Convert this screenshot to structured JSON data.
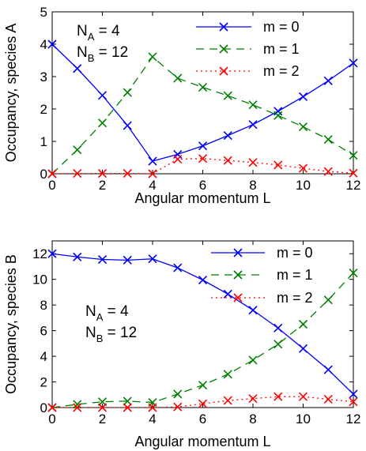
{
  "colors": {
    "m0": "#0000ff",
    "m1": "#008000",
    "m2": "#ff0000"
  },
  "chart_data": [
    {
      "type": "line",
      "xlabel": "Angular momentum L",
      "ylabel": "Occupancy, species A",
      "xlim": [
        0,
        12
      ],
      "ylim": [
        0,
        5
      ],
      "xticks": [
        "0",
        "2",
        "4",
        "6",
        "8",
        "10",
        "12"
      ],
      "yticks": [
        "0",
        "1",
        "2",
        "3",
        "4",
        "5"
      ],
      "legend_position": "top-right",
      "annotation": {
        "na_main": "N",
        "na_sub": "A",
        "na_val": " = 4",
        "nb_main": "N",
        "nb_sub": "B",
        "nb_val": " = 12"
      },
      "x": [
        0,
        1,
        2,
        3,
        4,
        5,
        6,
        7,
        8,
        9,
        10,
        11,
        12
      ],
      "series": [
        {
          "name": "m = 0",
          "style": "solid",
          "values": [
            4.0,
            3.25,
            2.42,
            1.49,
            0.39,
            0.6,
            0.86,
            1.18,
            1.52,
            1.93,
            2.38,
            2.87,
            3.42
          ]
        },
        {
          "name": "m = 1",
          "style": "dashed",
          "values": [
            0.0,
            0.74,
            1.57,
            2.51,
            3.61,
            2.95,
            2.67,
            2.41,
            2.13,
            1.8,
            1.45,
            1.06,
            0.57
          ]
        },
        {
          "name": "m = 2",
          "style": "dotted",
          "values": [
            0.0,
            0.01,
            0.01,
            0.01,
            0.0,
            0.45,
            0.47,
            0.41,
            0.35,
            0.27,
            0.17,
            0.07,
            0.02
          ]
        }
      ]
    },
    {
      "type": "line",
      "xlabel": "Angular momentum L",
      "ylabel": "Occupancy, species B",
      "xlim": [
        0,
        12
      ],
      "ylim": [
        0,
        13
      ],
      "xticks": [
        "0",
        "2",
        "4",
        "6",
        "8",
        "10",
        "12"
      ],
      "yticks": [
        "0",
        "2",
        "4",
        "6",
        "8",
        "10",
        "12"
      ],
      "legend_position": "top-right",
      "annotation": {
        "na_main": "N",
        "na_sub": "A",
        "na_val": " = 4",
        "nb_main": "N",
        "nb_sub": "B",
        "nb_val": " = 12"
      },
      "x": [
        0,
        1,
        2,
        3,
        4,
        5,
        6,
        7,
        8,
        9,
        10,
        11,
        12
      ],
      "series": [
        {
          "name": "m = 0",
          "style": "solid",
          "values": [
            12.0,
            11.75,
            11.55,
            11.5,
            11.6,
            10.9,
            9.95,
            8.85,
            7.6,
            6.2,
            4.6,
            2.95,
            1.05
          ]
        },
        {
          "name": "m = 1",
          "style": "dashed",
          "values": [
            0.0,
            0.25,
            0.45,
            0.5,
            0.4,
            1.05,
            1.75,
            2.6,
            3.7,
            4.95,
            6.5,
            8.4,
            10.5
          ]
        },
        {
          "name": "m = 2",
          "style": "dotted",
          "values": [
            0.0,
            0.0,
            0.0,
            0.0,
            0.0,
            0.05,
            0.3,
            0.55,
            0.7,
            0.85,
            0.85,
            0.65,
            0.45
          ]
        }
      ]
    }
  ]
}
